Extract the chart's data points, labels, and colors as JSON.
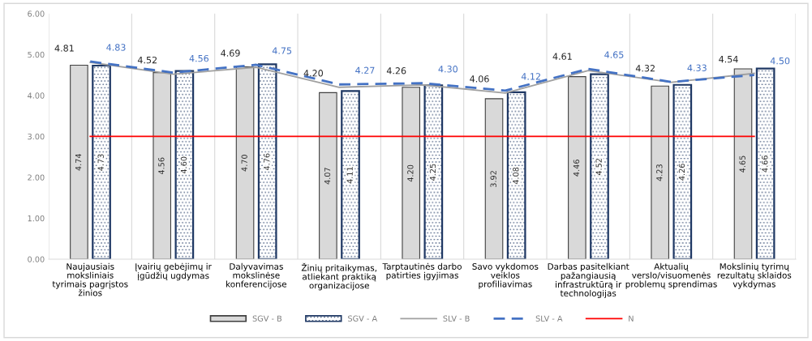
{
  "chart_data": {
    "type": "bar",
    "categories": [
      "Naujausiais moksliniais tyrimais pagrįstos žinios",
      "Įvairių gebėjimų ir įgūdžių ugdymas",
      "Dalyvavimas mokslinėse konferencijose",
      "Žinių pritaikymas, atliekant praktiką organizacijose",
      "Tarptautinės darbo patirties įgyjimas",
      "Savo vykdomos veiklos profiliavimas",
      "Darbas pasitelkiant pažangiausią infrastruktūrą ir technologijas",
      "Aktualių verslo/visuomenės problemų sprendimas",
      "Mokslinių tyrimų rezultatų sklaidos vykdymas"
    ],
    "series": [
      {
        "name": "SGV - B",
        "color": "#d9d9d9",
        "values": [
          4.74,
          4.56,
          4.7,
          4.07,
          4.2,
          3.92,
          4.46,
          4.23,
          4.65
        ],
        "value_labels": [
          "4.74",
          "4.56",
          "4.70",
          "4.07",
          "4.20",
          "3.92",
          "4.46",
          "4.23",
          "4.65"
        ]
      },
      {
        "name": "SGV - A",
        "color": "#1f3864",
        "values": [
          4.73,
          4.6,
          4.76,
          4.11,
          4.25,
          4.08,
          4.52,
          4.26,
          4.66
        ],
        "value_labels": [
          "4.73",
          "4.60",
          "4.76",
          "4.11",
          "4.25",
          "4.08",
          "4.52",
          "4.26",
          "4.66"
        ]
      },
      {
        "name": "SLV - B",
        "type": "line",
        "color": "#a0a0a0",
        "line_style": "solid",
        "values": [
          4.81,
          4.52,
          4.69,
          4.2,
          4.26,
          4.06,
          4.61,
          4.32,
          4.54
        ],
        "value_labels": [
          "4.81",
          "4.52",
          "4.69",
          "4.20",
          "4.26",
          "4.06",
          "4.61",
          "4.32",
          "4.54"
        ]
      },
      {
        "name": "SLV - A",
        "type": "line",
        "color": "#4472c4",
        "line_style": "dashed",
        "values": [
          4.83,
          4.56,
          4.75,
          4.27,
          4.3,
          4.12,
          4.65,
          4.33,
          4.5
        ],
        "value_labels": [
          "4.83",
          "4.56",
          "4.75",
          "4.27",
          "4.30",
          "4.12",
          "4.65",
          "4.33",
          "4.50"
        ]
      },
      {
        "name": "N",
        "type": "line",
        "color": "#ff0000",
        "line_style": "solid",
        "values": [
          3,
          3,
          3,
          3,
          3,
          3,
          3,
          3,
          3
        ]
      }
    ],
    "ylim": [
      0,
      6
    ],
    "yticks": [
      {
        "value": 0,
        "label": "0.00"
      },
      {
        "value": 1,
        "label": "1.00"
      },
      {
        "value": 2,
        "label": "2.00"
      },
      {
        "value": 3,
        "label": "3.00"
      },
      {
        "value": 4,
        "label": "4.00"
      },
      {
        "value": 5,
        "label": "5.00"
      },
      {
        "value": 6,
        "label": "6.00"
      }
    ],
    "grid": "x",
    "legend": "bottom"
  }
}
